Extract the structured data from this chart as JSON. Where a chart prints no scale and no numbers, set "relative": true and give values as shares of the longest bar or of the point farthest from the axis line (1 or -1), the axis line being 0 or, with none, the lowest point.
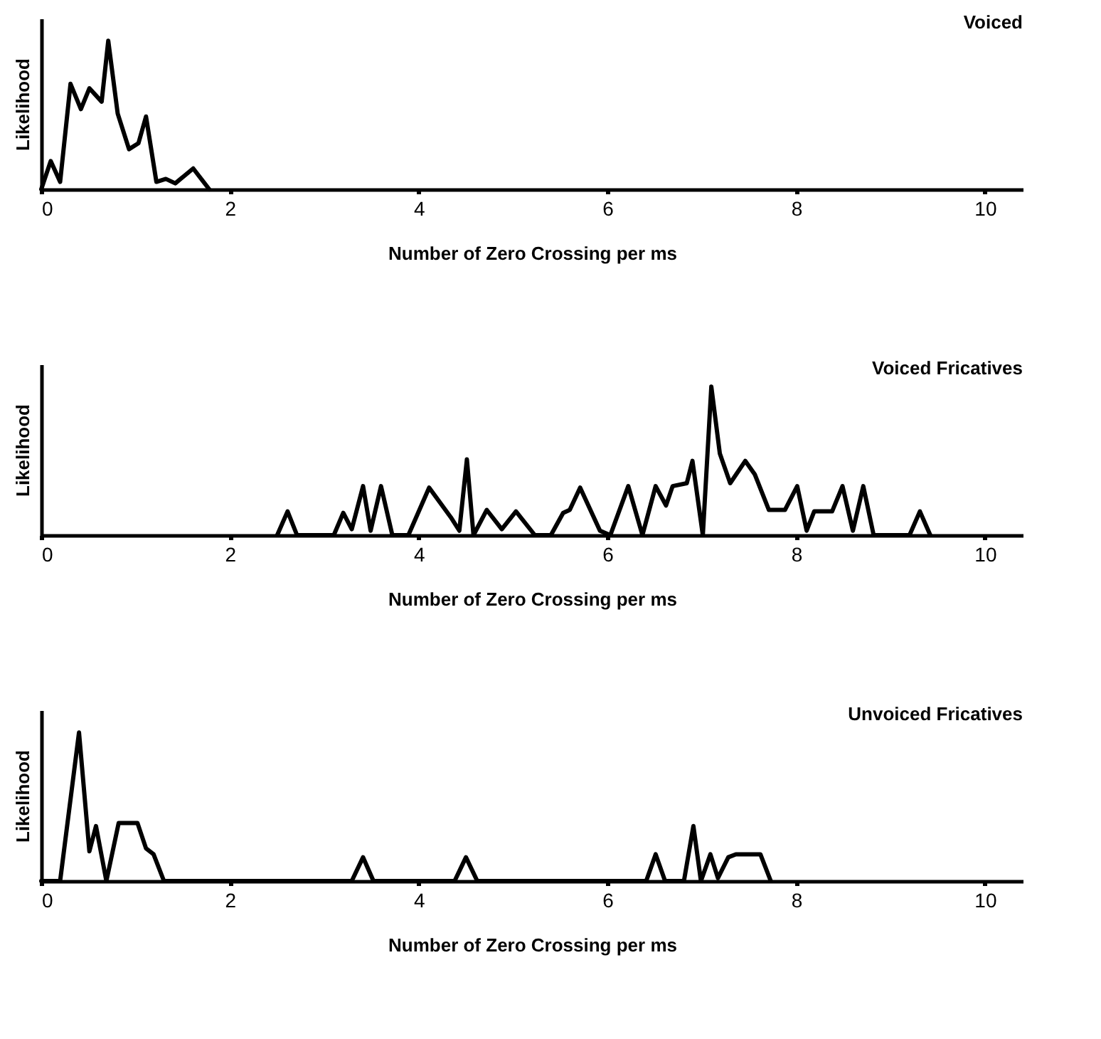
{
  "chart_data": [
    {
      "type": "line",
      "title": "Voiced",
      "xlabel": "Number of Zero Crossing per ms",
      "ylabel": "Likelihood",
      "relative": true,
      "color": "#000000",
      "xlim": [
        0,
        10.4
      ],
      "xticks": [
        0,
        2,
        4,
        6,
        8,
        10
      ],
      "x": [
        0,
        0.1,
        0.2,
        0.31,
        0.42,
        0.51,
        0.64,
        0.71,
        0.81,
        0.93,
        1.03,
        1.11,
        1.22,
        1.32,
        1.42,
        1.61,
        1.78
      ],
      "values": [
        0,
        0.19,
        0.05,
        0.71,
        0.54,
        0.68,
        0.59,
        1,
        0.51,
        0.27,
        0.31,
        0.49,
        0.05,
        0.07,
        0.04,
        0.14,
        0
      ]
    },
    {
      "type": "line",
      "title": "Voiced Fricatives",
      "xlabel": "Number of Zero Crossing per ms",
      "ylabel": "Likelihood",
      "relative": true,
      "color": "#000000",
      "xlim": [
        0,
        10.4
      ],
      "xticks": [
        0,
        2,
        4,
        6,
        8,
        10
      ],
      "x": [
        2.5,
        2.61,
        2.71,
        3.1,
        3.2,
        3.29,
        3.41,
        3.49,
        3.6,
        3.72,
        3.89,
        4.11,
        4.34,
        4.43,
        4.51,
        4.58,
        4.72,
        4.88,
        5.03,
        5.23,
        5.4,
        5.53,
        5.6,
        5.71,
        5.92,
        6.03,
        6.22,
        6.37,
        6.51,
        6.62,
        6.69,
        6.84,
        6.9,
        7.01,
        7.1,
        7.19,
        7.3,
        7.46,
        7.56,
        7.71,
        7.88,
        8.01,
        8.11,
        8.19,
        8.38,
        8.49,
        8.6,
        8.71,
        8.82,
        9.2,
        9.31,
        9.42
      ],
      "values": [
        0,
        0.16,
        0,
        0,
        0.15,
        0.04,
        0.33,
        0.03,
        0.33,
        0,
        0,
        0.32,
        0.12,
        0.03,
        0.51,
        0,
        0.17,
        0.04,
        0.16,
        0,
        0,
        0.15,
        0.17,
        0.32,
        0.03,
        0,
        0.33,
        0,
        0.33,
        0.2,
        0.33,
        0.35,
        0.5,
        0,
        1,
        0.55,
        0.35,
        0.5,
        0.41,
        0.17,
        0.17,
        0.33,
        0.03,
        0.16,
        0.16,
        0.33,
        0.03,
        0.33,
        0,
        0,
        0.16,
        0
      ]
    },
    {
      "type": "line",
      "title": "Unvoiced Fricatives",
      "xlabel": "Number of Zero Crossing per ms",
      "ylabel": "Likelihood",
      "relative": true,
      "color": "#000000",
      "xlim": [
        0,
        10.4
      ],
      "xticks": [
        0,
        2,
        4,
        6,
        8,
        10
      ],
      "x": [
        0,
        0.2,
        0.4,
        0.51,
        0.58,
        0.69,
        0.82,
        1.02,
        1.11,
        1.19,
        1.3,
        3.29,
        3.41,
        3.52,
        4.38,
        4.5,
        4.62,
        6.41,
        6.51,
        6.61,
        6.81,
        6.91,
        6.99,
        7.09,
        7.17,
        7.28,
        7.36,
        7.62,
        7.73
      ],
      "values": [
        0,
        0,
        1,
        0.2,
        0.37,
        0,
        0.39,
        0.39,
        0.22,
        0.18,
        0,
        0,
        0.16,
        0,
        0,
        0.16,
        0,
        0,
        0.18,
        0,
        0,
        0.37,
        0,
        0.18,
        0.02,
        0.16,
        0.18,
        0.18,
        0
      ]
    }
  ]
}
